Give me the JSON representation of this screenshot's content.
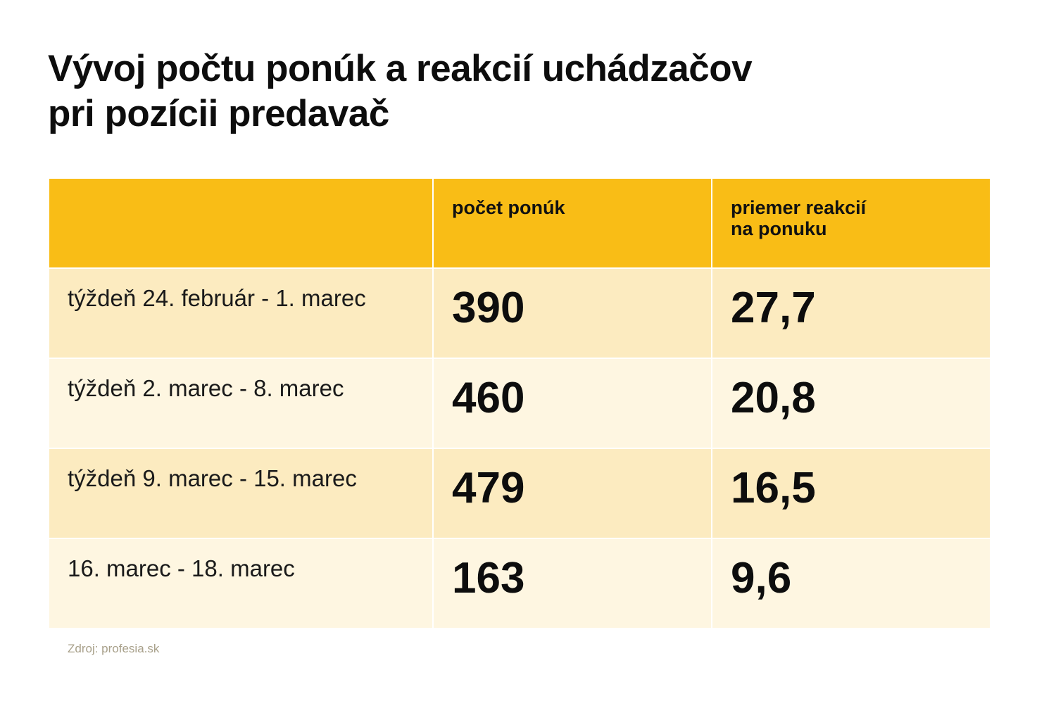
{
  "title": {
    "line1": "Vývoj počtu ponúk a reakcií uchádzačov",
    "line2": "pri pozícii predavač"
  },
  "table": {
    "columns": [
      {
        "line1": "",
        "line2": ""
      },
      {
        "line1": "počet ponúk",
        "line2": ""
      },
      {
        "line1": "priemer reakcií",
        "line2": "na ponuku"
      }
    ],
    "rows": [
      {
        "label": "týždeň 24. február - 1. marec",
        "offers": "390",
        "avg_reactions": "27,7"
      },
      {
        "label": "týždeň 2. marec - 8. marec",
        "offers": "460",
        "avg_reactions": "20,8"
      },
      {
        "label": "týždeň 9. marec - 15. marec",
        "offers": "479",
        "avg_reactions": "16,5"
      },
      {
        "label": "16. marec - 18. marec",
        "offers": "163",
        "avg_reactions": "9,6"
      }
    ]
  },
  "source": "Zdroj: profesia.sk",
  "colors": {
    "header": "#f9bd16",
    "row_dark": "#fcebc0",
    "row_light": "#fef6e1",
    "source_text": "#a8a08a"
  }
}
